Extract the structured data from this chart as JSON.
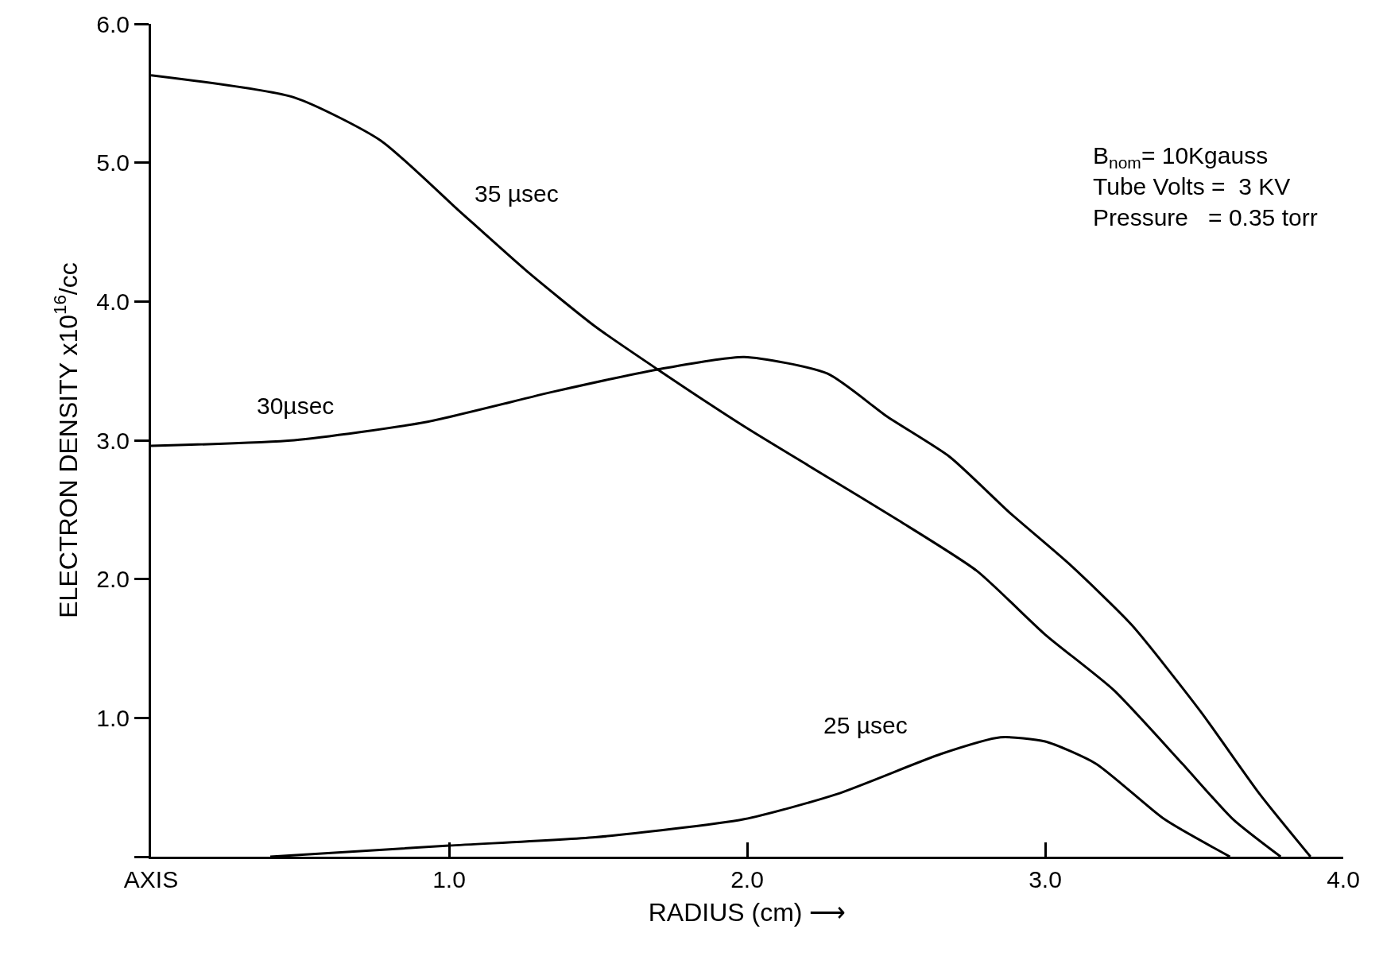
{
  "chart_data": {
    "type": "line",
    "xlabel": "RADIUS (cm) ⟶",
    "ylabel": "ELECTRON DENSITY x10$^{16}$/cc",
    "xlim": [
      0,
      4.0
    ],
    "ylim": [
      0,
      6.0
    ],
    "xticks": [
      {
        "value": 0,
        "label": "AXIS"
      },
      {
        "value": 1,
        "label": "1.0"
      },
      {
        "value": 2,
        "label": "2.0"
      },
      {
        "value": 3,
        "label": "3.0"
      },
      {
        "value": 4,
        "label": "4.0"
      }
    ],
    "yticks": [
      {
        "value": 0,
        "label": null
      },
      {
        "value": 1,
        "label": "1.0"
      },
      {
        "value": 2,
        "label": "2.0"
      },
      {
        "value": 3,
        "label": "3.0"
      },
      {
        "value": 4,
        "label": "4.0"
      },
      {
        "value": 5,
        "label": "5.0"
      },
      {
        "value": 6,
        "label": "6.0"
      }
    ],
    "legend": false,
    "marker": "none",
    "line_style": "solid",
    "series": [
      {
        "name": "35 µsec",
        "color": "#000000",
        "x": [
          0,
          0.48,
          0.77,
          1.03,
          1.26,
          1.49,
          1.7,
          1.99,
          2.25,
          2.51,
          2.77,
          3.0,
          3.23,
          3.46,
          3.63,
          3.79
        ],
        "values": [
          5.63,
          5.47,
          5.16,
          4.66,
          4.22,
          3.82,
          3.51,
          3.1,
          2.76,
          2.42,
          2.06,
          1.6,
          1.2,
          0.67,
          0.27,
          0
        ]
      },
      {
        "name": "30µsec",
        "color": "#000000",
        "x": [
          0,
          0.48,
          0.92,
          1.35,
          1.7,
          1.99,
          2.27,
          2.47,
          2.68,
          2.88,
          3.08,
          3.29,
          3.52,
          3.72,
          3.89
        ],
        "values": [
          2.96,
          3.0,
          3.13,
          3.35,
          3.51,
          3.6,
          3.48,
          3.17,
          2.88,
          2.48,
          2.11,
          1.67,
          1.05,
          0.45,
          0
        ]
      },
      {
        "name": "25 µsec",
        "color": "#000000",
        "x": [
          0.4,
          1.0,
          1.49,
          1.99,
          2.3,
          2.65,
          2.85,
          3.0,
          3.17,
          3.4,
          3.62
        ],
        "values": [
          0,
          0.08,
          0.14,
          0.27,
          0.45,
          0.74,
          0.86,
          0.83,
          0.67,
          0.27,
          0
        ]
      }
    ],
    "annotations": [
      "B$_{nom}$= 10Kgauss\nTube Volts =  3 KV\nPressure   = 0.35 torr"
    ]
  }
}
